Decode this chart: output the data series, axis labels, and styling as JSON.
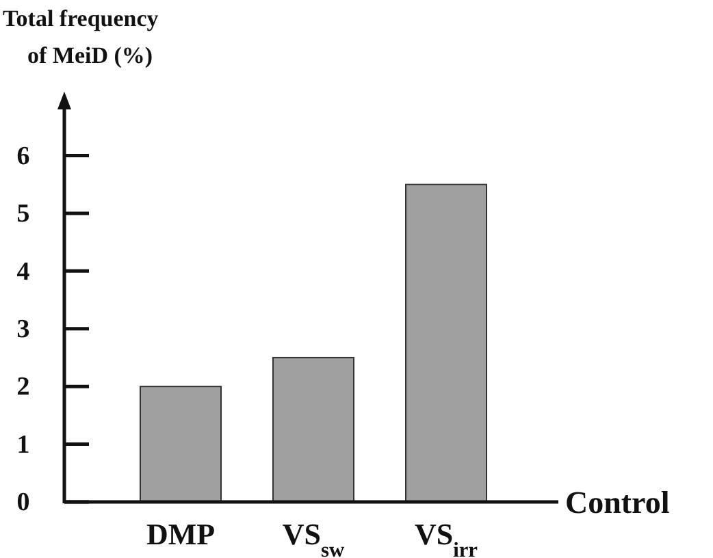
{
  "chart_data": {
    "type": "bar",
    "ylabel": "Total frequency of MeiD (%)",
    "xlabel": "Control",
    "categories": [
      "DMP",
      "VS$_{sw}$",
      "VS$_{irr}$"
    ],
    "values": [
      2,
      2.5,
      5.5
    ],
    "color": "#a0a0a0",
    "ylim": [
      0,
      6.8
    ],
    "yticks": [
      0,
      1,
      2,
      3,
      4,
      5,
      6
    ],
    "grid": false
  }
}
